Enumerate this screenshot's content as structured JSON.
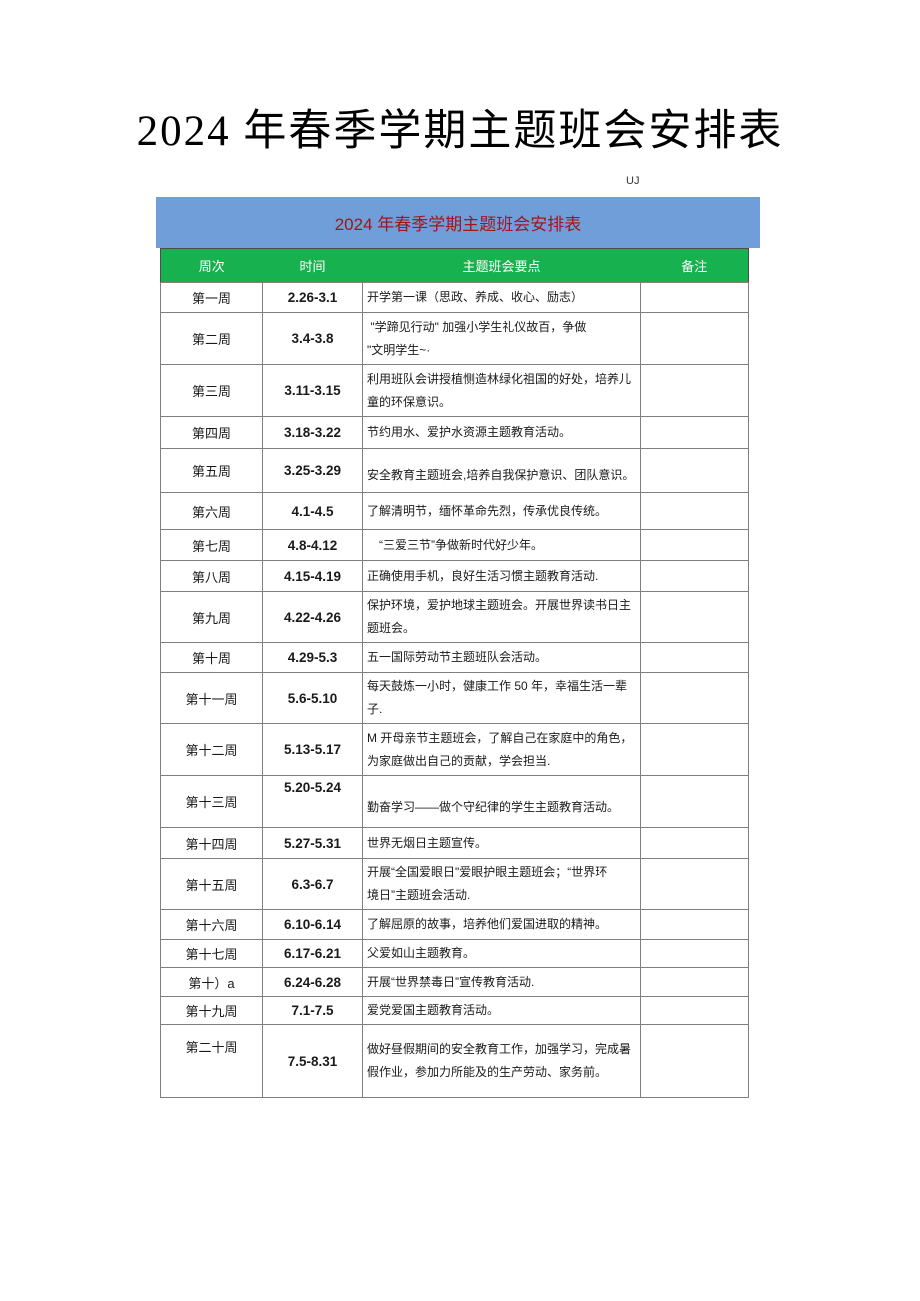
{
  "page_title": "2024 年春季学期主题班会安排表",
  "watermark": "UJ",
  "colors": {
    "banner_bg": "#6f9ed9",
    "banner_text": "#a3141c",
    "header_bg": "#17b24f",
    "header_text": "#ffffff"
  },
  "banner": {
    "title": "2024 年春季学期主题班会安排表"
  },
  "table": {
    "header": {
      "columns": [
        "周次",
        "时间",
        "主题班会要点",
        "备注"
      ]
    },
    "rows": [
      {
        "week": "第一周",
        "date": "2.26-3.1",
        "topic": "开学第一课（思政、养成、收心、励志）",
        "note": ""
      },
      {
        "week": "第二周",
        "date": "3.4-3.8",
        "topic": " \"学蹄见行动\" 加强小学生礼仪故百，争做\n\"文明学生~·",
        "note": ""
      },
      {
        "week": "第三周",
        "date": "3.11-3.15",
        "topic": "利用班队会讲授植恻造林绿化祖国的好处，培养儿\n童的环保意识。",
        "note": ""
      },
      {
        "week": "第四周",
        "date": "3.18-3.22",
        "topic": "节约用水、爱护水资源主题教育活动。",
        "note": ""
      },
      {
        "week": "第五周",
        "date": "3.25-3.29",
        "topic": "安全教育主题班会,培养自我保护意识、团队意识。",
        "note": ""
      },
      {
        "week": "第六周",
        "date": "4.1-4.5",
        "topic": "了解清明节，缅怀革命先烈，传承优良传统。",
        "note": ""
      },
      {
        "week": "第七周",
        "date": "4.8-4.12",
        "topic": "　“三爱三节”争做新时代好少年。",
        "note": ""
      },
      {
        "week": "第八周",
        "date": "4.15-4.19",
        "topic": "正确使用手机，良好生活习惯主题教育活动.",
        "note": ""
      },
      {
        "week": "第九周",
        "date": "4.22-4.26",
        "topic": "保护环境，爱护地球主题班会。开展世界读书日主\n题班会。",
        "note": ""
      },
      {
        "week": "第十周",
        "date": "4.29-5.3",
        "topic": "五一国际劳动节主题班队会活动。",
        "note": ""
      },
      {
        "week": "第十一周",
        "date": "5.6-5.10",
        "topic": "每天鼓炼一小时，健康工作 50 年，幸福生活一辈\n子.",
        "note": ""
      },
      {
        "week": "第十二周",
        "date": "5.13-5.17",
        "topic": "M 开母亲节主题班会，了解自己在家庭中的角色，\n为家庭做出自己的贡献，学会担当.",
        "note": ""
      },
      {
        "week": "第十三周",
        "date": "5.20-5.24",
        "topic": "勤奋学习——做个守纪律的学生主题教育活动。",
        "note": ""
      },
      {
        "week": "第十四周",
        "date": "5.27-5.31",
        "topic": "世界无烟日主题宣传。",
        "note": ""
      },
      {
        "week": "第十五周",
        "date": "6.3-6.7",
        "topic": "开展“全国爱眼日\"爱眼护眼主题班会；“世界环\n境日”主题班会活动.",
        "note": ""
      },
      {
        "week": "第十六周",
        "date": "6.10-6.14",
        "topic": "了解屈原的故事，培养他们爱国进取的精神。",
        "note": ""
      },
      {
        "week": "第十七周",
        "date": "6.17-6.21",
        "topic": "父爱如山主题教育。",
        "note": ""
      },
      {
        "week": "第十）a",
        "date": "6.24-6.28",
        "topic": "开展“世界禁毒日”宣传教育活动.",
        "note": ""
      },
      {
        "week": "第十九周",
        "date": "7.1-7.5",
        "topic": "爱党爱国主题教育活动。",
        "note": ""
      },
      {
        "week": "第二十周",
        "date": "7.5-8.31",
        "topic": "做好昼假期间的安全教育工作，加强学习，完成暑\n假作业，参加力所能及的生产劳动、家务前。",
        "note": ""
      }
    ]
  }
}
